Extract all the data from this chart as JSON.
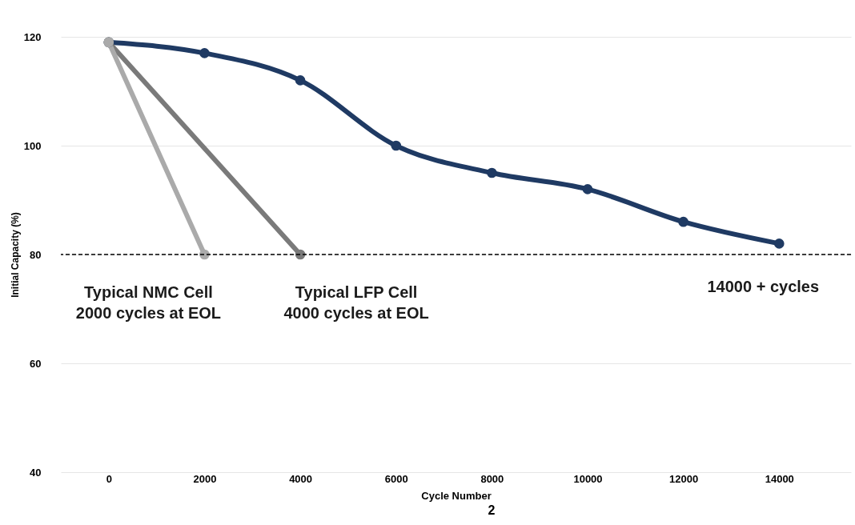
{
  "chart_data": {
    "type": "line",
    "xlabel": "Cycle Number",
    "ylabel": "Initial Capacity (%)",
    "series": [
      {
        "color": "#1f3a63",
        "x": [
          0,
          2000,
          4000,
          6000,
          8000,
          10000,
          12000,
          14000
        ],
        "values": [
          119,
          117,
          112,
          100,
          95,
          92,
          86,
          82
        ]
      },
      {
        "color": "#7a7a7a",
        "x": [
          0,
          4000
        ],
        "values": [
          119,
          80
        ]
      },
      {
        "color": "#aaaaaa",
        "x": [
          0,
          2000
        ],
        "values": [
          119,
          80
        ]
      }
    ],
    "xlim": [
      -1000,
      15500
    ],
    "xticks": [
      0,
      2000,
      4000,
      6000,
      8000,
      10000,
      12000,
      14000
    ],
    "ylim": [
      40,
      120
    ],
    "yticks": [
      40,
      60,
      80,
      100,
      120
    ],
    "grid": "y",
    "marker": "circle",
    "line_style": "solid",
    "ref_lines": [
      {
        "axis": "y",
        "value": 80,
        "color": "#000000",
        "line_style": "dashed"
      }
    ],
    "annotations": [
      {
        "text": "Typical NMC Cell\n2000 cycles at EOL",
        "x": 2000,
        "y": 80
      },
      {
        "text": "Typical LFP Cell\n4000 cycles at EOL",
        "x": 4000,
        "y": 80
      },
      {
        "text": "14000 + cycles",
        "x": 14000,
        "y": 82
      },
      "2"
    ]
  }
}
